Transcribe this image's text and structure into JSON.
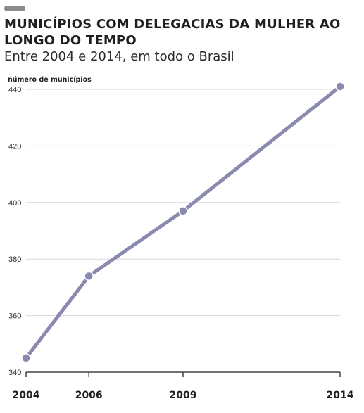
{
  "header": {
    "title": "MUNICÍPIOS COM DELEGACIAS DA MULHER AO LONGO DO TEMPO",
    "subtitle": "Entre 2004 e 2014, em todo o Brasil"
  },
  "colors": {
    "line": "#8a89b0",
    "grid": "#d7d7d7",
    "axis": "#444444",
    "pill": "#8b8b8b"
  },
  "chart_data": {
    "type": "line",
    "title": "MUNICÍPIOS COM DELEGACIAS DA MULHER AO LONGO DO TEMPO",
    "subtitle": "Entre 2004 e 2014, em todo o Brasil",
    "xlabel": "",
    "ylabel": "número de municípios",
    "x": [
      2004,
      2006,
      2009,
      2014
    ],
    "x_tick_labels": [
      "2004",
      "2006",
      "2009",
      "2014"
    ],
    "series": [
      {
        "values": [
          345,
          374,
          397,
          441
        ]
      }
    ],
    "ylim": [
      340,
      440
    ],
    "yticks": [
      340,
      360,
      380,
      400,
      420,
      440
    ],
    "grid": true,
    "legend": "none"
  }
}
